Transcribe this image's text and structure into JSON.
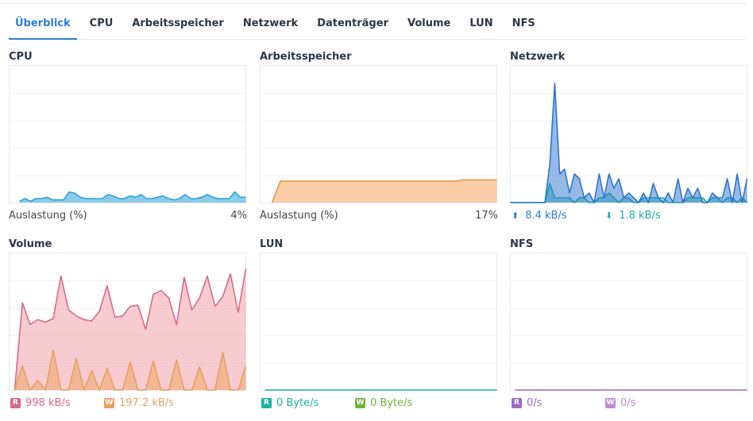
{
  "tabs": [
    "Überblick",
    "CPU",
    "Arbeitsspeicher",
    "Netzwerk",
    "Datenträger",
    "Volume",
    "LUN",
    "NFS"
  ],
  "active_tab": 0,
  "colors": {
    "accent": "#2b7fd0",
    "cpu": "#2aa3d8",
    "memory": "#e59a4a",
    "network_up": "#2f74d0",
    "network_down": "#19b3a0",
    "volume_read": "#d86a88",
    "volume_write": "#e8a060",
    "lun_read": "#19b3a0",
    "lun_write": "#6cb33f",
    "nfs_read": "#9a6bc0",
    "nfs_write": "#c08ad8"
  },
  "panels": {
    "cpu": {
      "title": "CPU",
      "label": "Auslastung  (%)",
      "value": "4%"
    },
    "memory": {
      "title": "Arbeitsspeicher",
      "label": "Auslastung  (%)",
      "value": "17%"
    },
    "network": {
      "title": "Netzwerk",
      "up_value": "8.4 kB/s",
      "down_value": "1.8 kB/s",
      "up_icon": "arrow-up-icon",
      "down_icon": "arrow-down-icon"
    },
    "volume": {
      "title": "Volume",
      "read_badge": "R",
      "read_value": "998 kB/s",
      "write_badge": "W",
      "write_value": "197.2 kB/s"
    },
    "lun": {
      "title": "LUN",
      "read_badge": "R",
      "read_value": "0 Byte/s",
      "write_badge": "W",
      "write_value": "0 Byte/s"
    },
    "nfs": {
      "title": "NFS",
      "read_badge": "R",
      "read_value": "0/s",
      "write_badge": "W",
      "write_value": "0/s"
    }
  },
  "chart_data": [
    {
      "type": "area",
      "id": "cpu",
      "ylim": [
        0,
        100
      ],
      "start": 13,
      "series": [
        {
          "values": [
            1,
            3,
            1,
            3,
            3,
            4,
            2,
            2,
            2,
            8,
            7,
            4,
            3,
            3,
            3,
            3,
            6,
            5,
            3,
            3,
            5,
            4,
            6,
            3,
            3,
            4,
            5,
            3,
            2,
            3,
            6,
            3,
            3,
            4,
            6,
            4,
            3,
            3,
            3,
            8,
            4,
            4
          ]
        }
      ]
    },
    {
      "type": "area",
      "id": "memory",
      "ylim": [
        0,
        100
      ],
      "start": 15,
      "series": [
        {
          "values": [
            0,
            16,
            16,
            16,
            16,
            16,
            16,
            16,
            16,
            16,
            16,
            16,
            16,
            16,
            16,
            16,
            16,
            16,
            16,
            16,
            16,
            16,
            16,
            17,
            17,
            17,
            17,
            17
          ]
        }
      ]
    },
    {
      "type": "area",
      "id": "network",
      "ylim": [
        0,
        28
      ],
      "start": 0,
      "series": [
        {
          "values": [
            0,
            0,
            0,
            0,
            0,
            0,
            0,
            0,
            4,
            1,
            1,
            1,
            1,
            0,
            1,
            1,
            0,
            0,
            1,
            1,
            2,
            1,
            0,
            1,
            1,
            0,
            0,
            1,
            1,
            1,
            1,
            1,
            0,
            0,
            0,
            0,
            1,
            1,
            1,
            1,
            0,
            1,
            1,
            0,
            1,
            1,
            0,
            1,
            0
          ]
        },
        {
          "values": [
            0,
            0,
            0,
            0,
            0,
            0,
            0,
            0,
            8,
            25,
            6,
            7,
            2,
            6,
            5,
            1,
            2,
            0,
            6,
            1,
            6,
            3,
            5,
            1,
            2,
            1,
            0,
            2,
            0,
            4,
            1,
            0,
            2,
            0,
            5,
            0,
            3,
            1,
            3,
            0,
            0,
            2,
            1,
            1,
            5,
            0,
            6,
            0,
            5
          ]
        }
      ]
    },
    {
      "type": "area",
      "id": "volume",
      "ylim": [
        0,
        1100
      ],
      "start": 7,
      "series": [
        {
          "values": [
            0,
            720,
            540,
            580,
            560,
            590,
            940,
            660,
            610,
            580,
            570,
            650,
            860,
            600,
            610,
            690,
            700,
            500,
            790,
            820,
            760,
            540,
            930,
            660,
            760,
            940,
            690,
            770,
            960,
            640,
            1000
          ]
        },
        {
          "values": [
            0,
            200,
            0,
            80,
            0,
            330,
            0,
            0,
            260,
            0,
            160,
            0,
            180,
            0,
            0,
            230,
            0,
            0,
            240,
            0,
            0,
            250,
            0,
            0,
            190,
            0,
            0,
            310,
            0,
            0,
            200
          ]
        }
      ]
    },
    {
      "type": "area",
      "id": "lun",
      "ylim": [
        0,
        100
      ],
      "start": 6,
      "series": [
        {
          "values": [
            0,
            0,
            0,
            0,
            0,
            0,
            0,
            0,
            0,
            0,
            0,
            0,
            0,
            0,
            0,
            0,
            0,
            0,
            0,
            0,
            0,
            0,
            0,
            0,
            0,
            0,
            0,
            0,
            0,
            0,
            0,
            0,
            0,
            0,
            0,
            0
          ]
        }
      ]
    },
    {
      "type": "area",
      "id": "nfs",
      "ylim": [
        0,
        100
      ],
      "start": 6,
      "series": [
        {
          "values": [
            0,
            0,
            0,
            0,
            0,
            0,
            0,
            0,
            0,
            0,
            0,
            0,
            0,
            0,
            0,
            0,
            0,
            0,
            0,
            0,
            0,
            0,
            0,
            0,
            0,
            0,
            0,
            0,
            0,
            0,
            0,
            0,
            0,
            0,
            0,
            0
          ]
        }
      ]
    }
  ]
}
